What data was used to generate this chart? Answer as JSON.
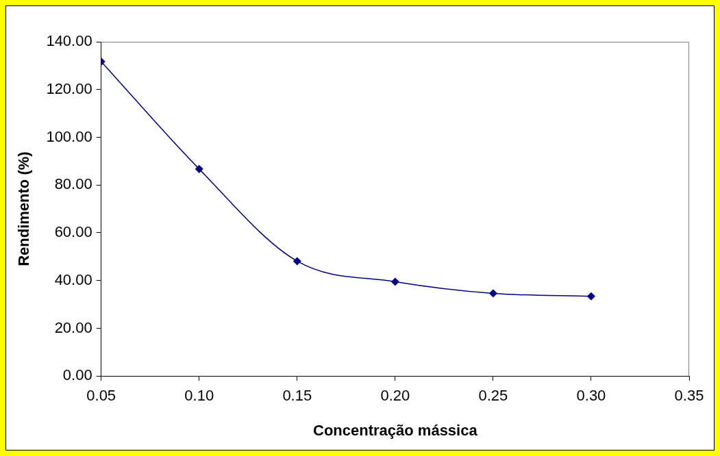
{
  "chart_data": {
    "type": "line",
    "xlabel": "Concentração mássica",
    "ylabel": "Rendimento (%)",
    "x": [
      0.05,
      0.1,
      0.15,
      0.2,
      0.25,
      0.3
    ],
    "series": [
      {
        "color": "#000080",
        "values": [
          131.7,
          86.7,
          48.1,
          39.5,
          34.6,
          33.4
        ]
      }
    ],
    "xlim": [
      0.05,
      0.35
    ],
    "xticks": [
      {
        "value": 0.05,
        "label": "0.05"
      },
      {
        "value": 0.1,
        "label": "0.10"
      },
      {
        "value": 0.15,
        "label": "0.15"
      },
      {
        "value": 0.2,
        "label": "0.20"
      },
      {
        "value": 0.25,
        "label": "0.25"
      },
      {
        "value": 0.3,
        "label": "0.30"
      },
      {
        "value": 0.35,
        "label": "0.35"
      }
    ],
    "ylim": [
      0,
      140
    ],
    "yticks": [
      {
        "value": 0,
        "label": "0.00"
      },
      {
        "value": 20,
        "label": "20.00"
      },
      {
        "value": 40,
        "label": "40.00"
      },
      {
        "value": 60,
        "label": "60.00"
      },
      {
        "value": 80,
        "label": "80.00"
      },
      {
        "value": 100,
        "label": "100.00"
      },
      {
        "value": 120,
        "label": "120.00"
      },
      {
        "value": 140,
        "label": "140.00"
      }
    ],
    "grid": false,
    "legend": false,
    "marker": "diamond",
    "line_style": "solid"
  }
}
